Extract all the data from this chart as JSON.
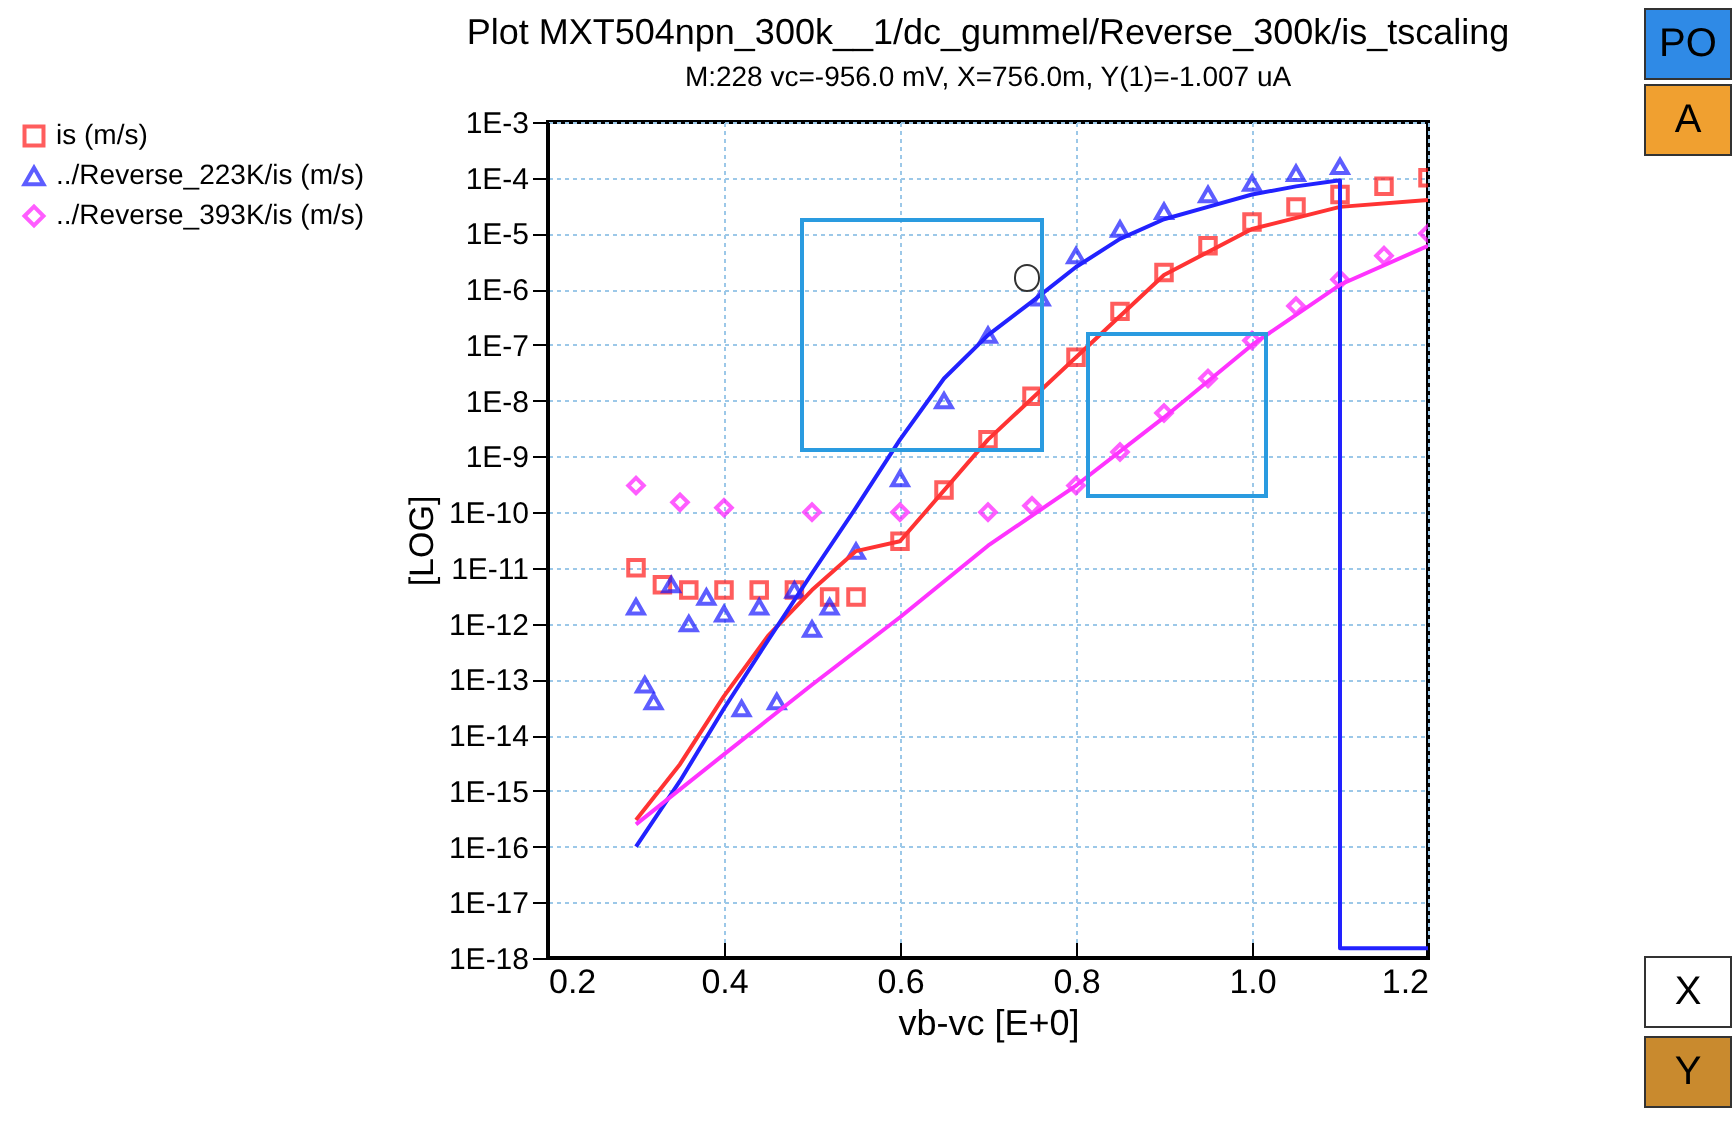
{
  "chart_data": {
    "type": "scatter",
    "title": "Plot MXT504npn_300k__1/dc_gummel/Reverse_300k/is_tscaling",
    "subtitle": "M:228 vc=-956.0  mV, X=756.0m, Y(1)=-1.007  uA",
    "xlabel": "vb-vc  [E+0]",
    "ylabel": "[LOG]",
    "log": true,
    "grid": true,
    "legend": "left",
    "xlim": [
      0.2,
      1.2
    ],
    "xticks": [
      0.2,
      0.4,
      0.6,
      0.8,
      {
        "value": 1,
        "label": "1.0"
      },
      1.2
    ],
    "ylim": [
      1e-18,
      0.001
    ],
    "yticks": [
      {
        "value": 0.001,
        "label": "1E-3"
      },
      {
        "value": 0.0001,
        "label": "1E-4"
      },
      {
        "value": 1e-05,
        "label": "1E-5"
      },
      {
        "value": 1e-06,
        "label": "1E-6"
      },
      {
        "value": 1e-07,
        "label": "1E-7"
      },
      {
        "value": 1e-08,
        "label": "1E-8"
      },
      {
        "value": 1e-09,
        "label": "1E-9"
      },
      {
        "value": 1e-10,
        "label": "1E-10"
      },
      {
        "value": 1e-11,
        "label": "1E-11"
      },
      {
        "value": 1e-12,
        "label": "1E-12"
      },
      {
        "value": 1e-13,
        "label": "1E-13"
      },
      {
        "value": 1e-14,
        "label": "1E-14"
      },
      {
        "value": 1e-15,
        "label": "1E-15"
      },
      {
        "value": 1e-16,
        "label": "1E-16"
      },
      {
        "value": 1e-17,
        "label": "1E-17"
      },
      {
        "value": 1e-18,
        "label": "1E-18"
      }
    ],
    "annotations": [
      "PO",
      "A",
      "X",
      "Y"
    ],
    "series": [
      {
        "name": "is (m/s)",
        "marker": "square",
        "color": "#ff1a1a",
        "x": [
          0.3,
          0.33,
          0.36,
          0.4,
          0.44,
          0.48,
          0.52,
          0.55,
          0.6,
          0.65,
          0.7,
          0.75,
          0.8,
          0.85,
          0.9,
          0.95,
          1.0,
          1.05,
          1.1,
          1.15,
          1.2
        ],
        "values": [
          1e-11,
          5e-12,
          4e-12,
          4e-12,
          4e-12,
          4e-12,
          3e-12,
          3e-12,
          3e-11,
          2.5e-10,
          2e-09,
          1.2e-08,
          6e-08,
          4e-07,
          2e-06,
          6e-06,
          1.6e-05,
          3e-05,
          5e-05,
          7e-05,
          0.0001
        ]
      },
      {
        "name": "../Reverse_223K/is (m/s)",
        "marker": "triangle",
        "color": "#1a1aff",
        "x": [
          0.3,
          0.31,
          0.32,
          0.34,
          0.36,
          0.38,
          0.4,
          0.42,
          0.44,
          0.46,
          0.48,
          0.5,
          0.52,
          0.55,
          0.6,
          0.65,
          0.7,
          0.76,
          0.8,
          0.85,
          0.9,
          0.95,
          1.0,
          1.05,
          1.1
        ],
        "values": [
          2e-12,
          8e-14,
          4e-14,
          5e-12,
          1e-12,
          3e-12,
          1.5e-12,
          3e-14,
          2e-12,
          4e-14,
          4e-12,
          8e-13,
          2e-12,
          2e-11,
          4e-10,
          1e-08,
          1.5e-07,
          7e-07,
          4e-06,
          1.2e-05,
          2.5e-05,
          5e-05,
          8e-05,
          0.00012,
          0.00016
        ]
      },
      {
        "name": "../Reverse_393K/is (m/s)",
        "marker": "diamond",
        "color": "#ff1aff",
        "x": [
          0.3,
          0.35,
          0.4,
          0.5,
          0.6,
          0.7,
          0.75,
          0.8,
          0.85,
          0.9,
          0.95,
          1.0,
          1.05,
          1.1,
          1.15,
          1.2
        ],
        "values": [
          3e-10,
          1.5e-10,
          1.2e-10,
          1e-10,
          1e-10,
          1e-10,
          1.3e-10,
          3e-10,
          1.2e-09,
          6e-09,
          2.5e-08,
          1.2e-07,
          5e-07,
          1.5e-06,
          4e-06,
          1e-05
        ]
      },
      {
        "type": "line",
        "color": "#ff3333",
        "x": [
          0.3,
          0.35,
          0.4,
          0.45,
          0.5,
          0.55,
          0.6,
          0.7,
          0.8,
          0.9,
          1.0,
          1.1,
          1.2
        ],
        "values": [
          3e-16,
          3e-15,
          5e-14,
          6e-13,
          4e-12,
          2e-11,
          3e-11,
          2e-09,
          6e-08,
          1.8e-06,
          1.2e-05,
          3e-05,
          4e-05
        ]
      },
      {
        "type": "line",
        "color": "#2222ff",
        "x": [
          0.3,
          0.35,
          0.4,
          0.45,
          0.5,
          0.55,
          0.6,
          0.65,
          0.7,
          0.75,
          0.8,
          0.85,
          0.9,
          0.95,
          1.0,
          1.05,
          1.1,
          1.1,
          1.2
        ],
        "values": [
          1e-16,
          1.5e-15,
          3e-14,
          5e-13,
          8e-12,
          1.2e-10,
          2e-09,
          2.5e-08,
          1.5e-07,
          6e-07,
          2.5e-06,
          8e-06,
          1.8e-05,
          3e-05,
          5e-05,
          7e-05,
          9e-05,
          1.5e-18,
          1.5e-18
        ]
      },
      {
        "type": "line",
        "color": "#ff33ff",
        "x": [
          0.3,
          0.4,
          0.5,
          0.6,
          0.7,
          0.8,
          0.9,
          1.0,
          1.1,
          1.2
        ],
        "values": [
          2.5e-16,
          4.5e-15,
          8e-14,
          1.3e-12,
          2.5e-11,
          3e-10,
          5e-09,
          1e-07,
          1.2e-06,
          6e-06
        ]
      }
    ]
  }
}
